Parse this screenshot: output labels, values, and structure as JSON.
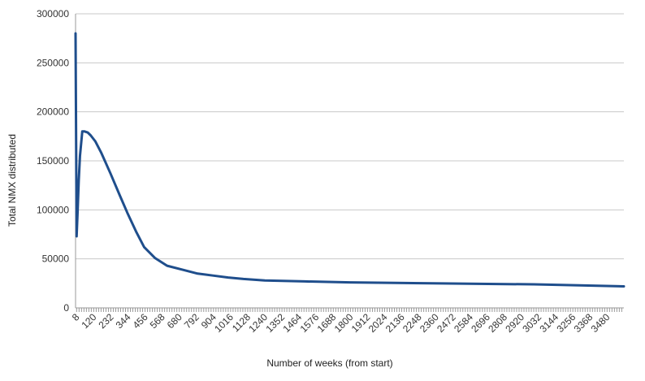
{
  "chart_data": {
    "type": "line",
    "title": "",
    "xlabel": "Number of weeks (from start)",
    "ylabel": "Total NMX distributed",
    "ylim": [
      0,
      300000
    ],
    "xlim": [
      1,
      3590
    ],
    "yticks": [
      0,
      50000,
      100000,
      150000,
      200000,
      250000,
      300000
    ],
    "xticks": [
      8,
      120,
      232,
      344,
      456,
      568,
      680,
      792,
      904,
      1016,
      1128,
      1240,
      1352,
      1464,
      1576,
      1688,
      1800,
      1912,
      2024,
      2136,
      2248,
      2360,
      2472,
      2584,
      2696,
      2808,
      2920,
      3032,
      3144,
      3256,
      3368,
      3480
    ],
    "grid": "horizontal",
    "legend": "none",
    "colors": {
      "line": "#1f4e8c",
      "grid": "#c8c8c8",
      "axis": "#999999"
    },
    "series": [
      {
        "x": [
          1,
          8,
          15,
          22,
          30,
          45,
          60,
          80,
          100,
          130,
          170,
          230,
          290,
          340,
          400,
          450,
          520,
          600,
          700,
          800,
          900,
          1000,
          1100,
          1240,
          1500,
          1800,
          2100,
          2400,
          2700,
          3000,
          3300,
          3590
        ],
        "values": [
          280000,
          73000,
          100000,
          130000,
          155000,
          180000,
          180000,
          179000,
          176000,
          170000,
          158000,
          137000,
          115000,
          97000,
          77000,
          62000,
          51000,
          43000,
          39000,
          35000,
          33000,
          31000,
          29500,
          28000,
          27000,
          26000,
          25500,
          25000,
          24500,
          24000,
          23000,
          22000
        ]
      }
    ]
  }
}
